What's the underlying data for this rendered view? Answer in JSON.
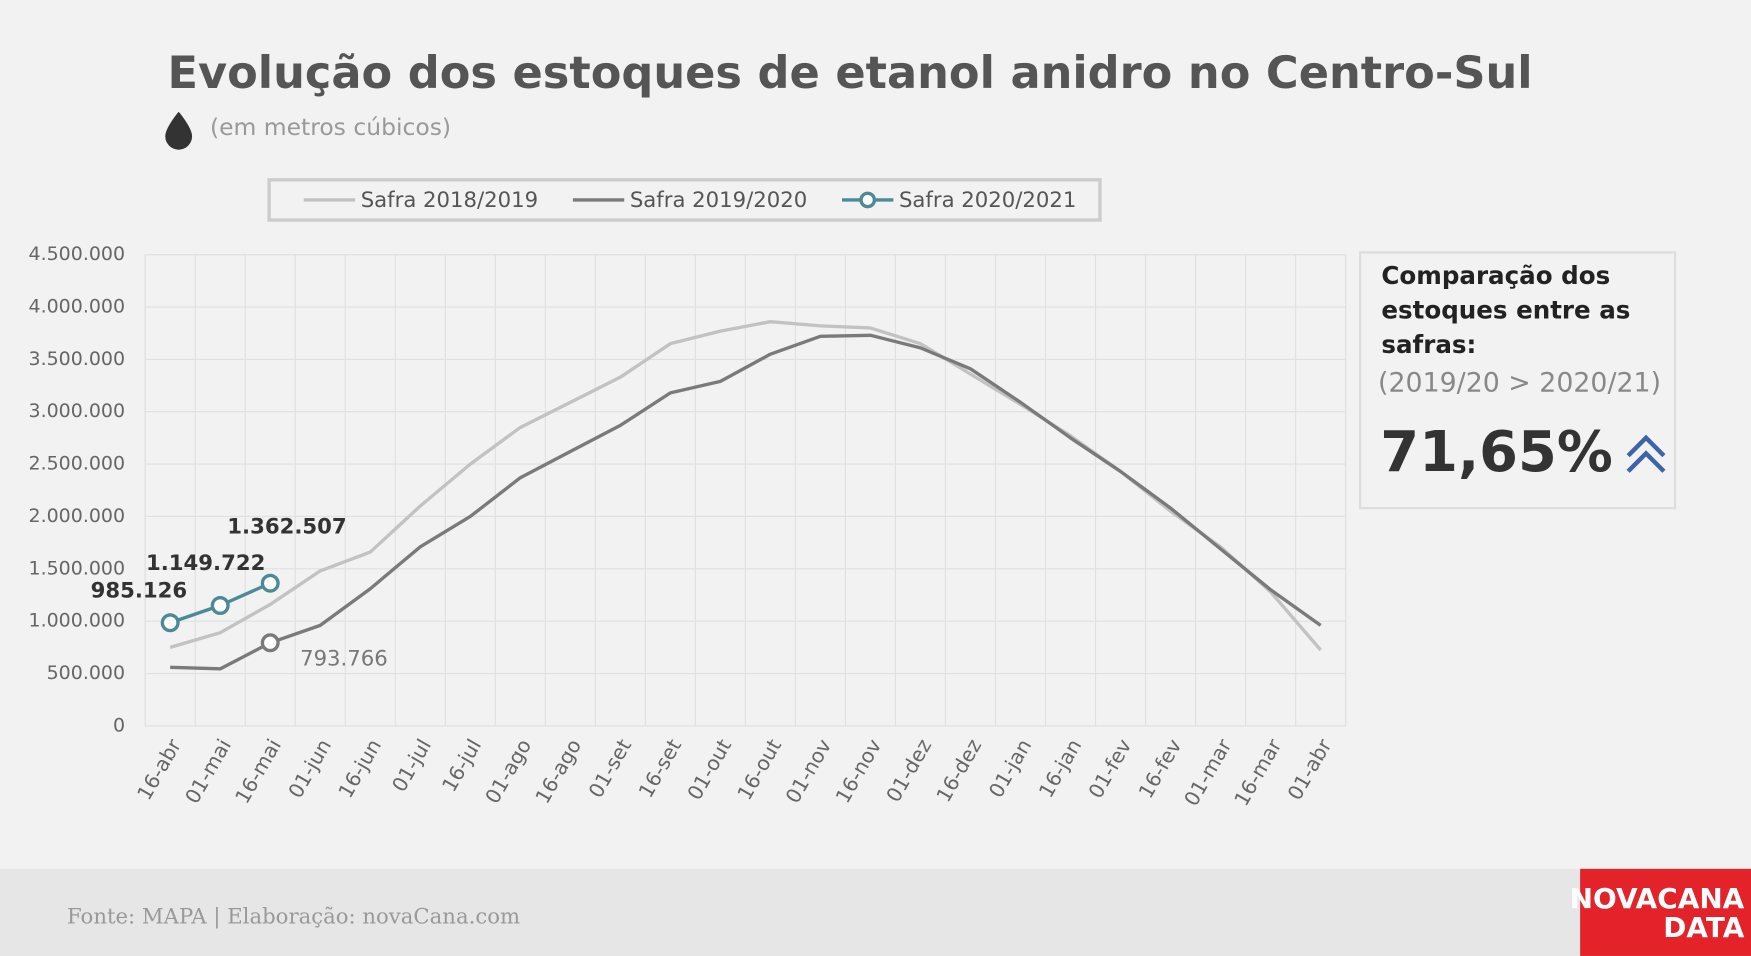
{
  "chart_data": {
    "type": "line",
    "title": "Evolução dos estoques de etanol anidro no Centro-Sul",
    "subtitle": "(em metros cúbicos)",
    "categories": [
      "16-abr",
      "01-mai",
      "16-mai",
      "01-jun",
      "16-jun",
      "01-jul",
      "16-jul",
      "01-ago",
      "16-ago",
      "01-set",
      "16-set",
      "01-out",
      "16-out",
      "01-nov",
      "16-nov",
      "01-dez",
      "16-dez",
      "01-jan",
      "16-jan",
      "01-fev",
      "16-fev",
      "01-mar",
      "16-mar",
      "01-abr"
    ],
    "series": [
      {
        "name": "Safra 2018/2019",
        "color": "#c2c2c2",
        "values": [
          750000,
          890000,
          1160000,
          1480000,
          1660000,
          2100000,
          2500000,
          2850000,
          3090000,
          3330000,
          3650000,
          3770000,
          3860000,
          3820000,
          3800000,
          3650000,
          3360000,
          3070000,
          2770000,
          2430000,
          2050000,
          1710000,
          1280000,
          725000
        ]
      },
      {
        "name": "Safra 2019/2020",
        "color": "#7a7a7a",
        "values": [
          560000,
          545000,
          793766,
          960000,
          1310000,
          1710000,
          2000000,
          2370000,
          2620000,
          2870000,
          3180000,
          3290000,
          3550000,
          3720000,
          3730000,
          3610000,
          3410000,
          3090000,
          2750000,
          2430000,
          2080000,
          1690000,
          1300000,
          960000
        ],
        "value_labels": [
          null,
          null,
          "793.766",
          null,
          null,
          null,
          null,
          null,
          null,
          null,
          null,
          null,
          null,
          null,
          null,
          null,
          null,
          null,
          null,
          null,
          null,
          null,
          null,
          null
        ]
      },
      {
        "name": "Safra 2020/2021",
        "color": "#4a8a99",
        "marker": true,
        "values": [
          985126,
          1149722,
          1362507,
          null,
          null,
          null,
          null,
          null,
          null,
          null,
          null,
          null,
          null,
          null,
          null,
          null,
          null,
          null,
          null,
          null,
          null,
          null,
          null,
          null
        ],
        "value_labels": [
          "985.126",
          "1.149.722",
          "1.362.507",
          null,
          null,
          null,
          null,
          null,
          null,
          null,
          null,
          null,
          null,
          null,
          null,
          null,
          null,
          null,
          null,
          null,
          null,
          null,
          null,
          null
        ]
      }
    ],
    "ylim": [
      0,
      4500000
    ],
    "yticks": [
      0,
      {
        "value": 500000,
        "label": "500.000"
      },
      {
        "value": 1000000,
        "label": "1.000.000"
      },
      {
        "value": 1500000,
        "label": "1.500.000"
      },
      {
        "value": 2000000,
        "label": "2.000.000"
      },
      {
        "value": 2500000,
        "label": "2.500.000"
      },
      {
        "value": 3000000,
        "label": "3.000.000"
      },
      {
        "value": 3500000,
        "label": "3.500.000"
      },
      {
        "value": 4000000,
        "label": "4.000.000"
      },
      {
        "value": 4500000,
        "label": "4.500.000"
      }
    ],
    "grid": true,
    "legend": "top",
    "side_box": {
      "title_lines": [
        "Comparação dos",
        "estoques entre as",
        "safras:"
      ],
      "subtitle": "(2019/20 > 2020/21)",
      "value": "71,65%"
    },
    "source": "Fonte: MAPA  | Elaboração: novaCana.com",
    "logo": [
      "NOVACANA",
      "DATA"
    ]
  }
}
